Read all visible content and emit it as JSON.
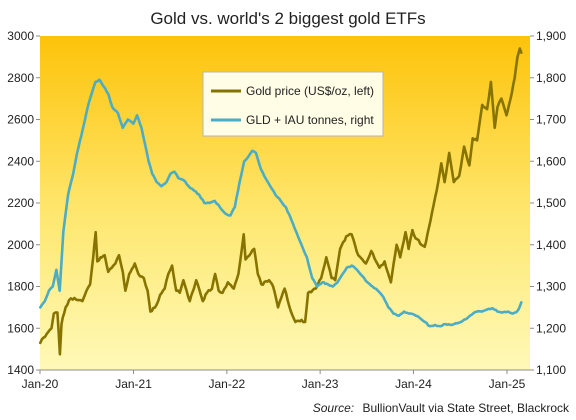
{
  "chart_data": {
    "type": "line",
    "title": "Gold vs. world's 2 biggest gold ETFs",
    "source_label": "Source:",
    "source_text": "BullionVault via  State Street, Blackrock",
    "x_axis": {
      "range": [
        "2020-01",
        "2025-04"
      ],
      "ticks": [
        {
          "value": "2020-01",
          "label": "Jan-20"
        },
        {
          "value": "2021-01",
          "label": "Jan-21"
        },
        {
          "value": "2022-01",
          "label": "Jan-22"
        },
        {
          "value": "2023-01",
          "label": "Jan-23"
        },
        {
          "value": "2024-01",
          "label": "Jan-24"
        },
        {
          "value": "2025-01",
          "label": "Jan-25"
        }
      ]
    },
    "y_left": {
      "range": [
        1400,
        3000
      ],
      "ticks": [
        {
          "value": 1400,
          "label": "1400"
        },
        {
          "value": 1600,
          "label": "1600"
        },
        {
          "value": 1800,
          "label": "1800"
        },
        {
          "value": 2000,
          "label": "2000"
        },
        {
          "value": 2200,
          "label": "2200"
        },
        {
          "value": 2400,
          "label": "2400"
        },
        {
          "value": 2600,
          "label": "2600"
        },
        {
          "value": 2800,
          "label": "2800"
        },
        {
          "value": 3000,
          "label": "3000"
        }
      ]
    },
    "y_right": {
      "range": [
        1100,
        1900
      ],
      "ticks": [
        {
          "value": 1100,
          "label": "1,100"
        },
        {
          "value": 1200,
          "label": "1,200"
        },
        {
          "value": 1300,
          "label": "1,300"
        },
        {
          "value": 1400,
          "label": "1,400"
        },
        {
          "value": 1500,
          "label": "1,500"
        },
        {
          "value": 1600,
          "label": "1,600"
        },
        {
          "value": 1700,
          "label": "1,700"
        },
        {
          "value": 1800,
          "label": "1,800"
        },
        {
          "value": 1900,
          "label": "1,900"
        }
      ]
    },
    "grid": false,
    "legend_position": "top-center",
    "colors": {
      "gold_price": "#877400",
      "etf_holdings": "#4bacc6",
      "background_top": "#fdc30a",
      "background_bottom": "#fff9b8"
    },
    "series": [
      {
        "id": "gold_price",
        "name": "Gold price (US$/oz, left)",
        "axis": "left",
        "points": [
          [
            "2020-01-02",
            1530
          ],
          [
            "2020-01-15",
            1555
          ],
          [
            "2020-02-01",
            1580
          ],
          [
            "2020-02-15",
            1600
          ],
          [
            "2020-02-24",
            1670
          ],
          [
            "2020-03-09",
            1675
          ],
          [
            "2020-03-19",
            1475
          ],
          [
            "2020-03-25",
            1620
          ],
          [
            "2020-04-10",
            1700
          ],
          [
            "2020-04-24",
            1735
          ],
          [
            "2020-05-15",
            1745
          ],
          [
            "2020-06-01",
            1735
          ],
          [
            "2020-06-15",
            1730
          ],
          [
            "2020-07-01",
            1780
          ],
          [
            "2020-07-15",
            1810
          ],
          [
            "2020-07-27",
            1940
          ],
          [
            "2020-08-06",
            2060
          ],
          [
            "2020-08-12",
            1920
          ],
          [
            "2020-08-25",
            1940
          ],
          [
            "2020-09-10",
            1950
          ],
          [
            "2020-09-24",
            1870
          ],
          [
            "2020-10-08",
            1890
          ],
          [
            "2020-10-22",
            1910
          ],
          [
            "2020-11-05",
            1950
          ],
          [
            "2020-11-20",
            1870
          ],
          [
            "2020-11-30",
            1780
          ],
          [
            "2020-12-15",
            1860
          ],
          [
            "2021-01-06",
            1910
          ],
          [
            "2021-01-20",
            1860
          ],
          [
            "2021-02-10",
            1840
          ],
          [
            "2021-02-25",
            1780
          ],
          [
            "2021-03-08",
            1680
          ],
          [
            "2021-03-31",
            1710
          ],
          [
            "2021-04-15",
            1760
          ],
          [
            "2021-05-03",
            1790
          ],
          [
            "2021-05-17",
            1860
          ],
          [
            "2021-06-01",
            1900
          ],
          [
            "2021-06-17",
            1780
          ],
          [
            "2021-07-01",
            1770
          ],
          [
            "2021-07-15",
            1830
          ],
          [
            "2021-08-09",
            1730
          ],
          [
            "2021-08-25",
            1790
          ],
          [
            "2021-09-03",
            1830
          ],
          [
            "2021-09-29",
            1730
          ],
          [
            "2021-10-15",
            1770
          ],
          [
            "2021-11-04",
            1790
          ],
          [
            "2021-11-16",
            1860
          ],
          [
            "2021-11-30",
            1780
          ],
          [
            "2021-12-15",
            1770
          ],
          [
            "2022-01-05",
            1820
          ],
          [
            "2022-01-28",
            1790
          ],
          [
            "2022-02-15",
            1860
          ],
          [
            "2022-03-08",
            2050
          ],
          [
            "2022-03-15",
            1930
          ],
          [
            "2022-04-18",
            1980
          ],
          [
            "2022-05-02",
            1860
          ],
          [
            "2022-05-16",
            1810
          ],
          [
            "2022-06-15",
            1830
          ],
          [
            "2022-07-01",
            1800
          ],
          [
            "2022-07-20",
            1700
          ],
          [
            "2022-08-15",
            1790
          ],
          [
            "2022-09-01",
            1710
          ],
          [
            "2022-09-26",
            1630
          ],
          [
            "2022-10-20",
            1640
          ],
          [
            "2022-11-03",
            1630
          ],
          [
            "2022-11-15",
            1770
          ],
          [
            "2022-12-15",
            1790
          ],
          [
            "2023-01-05",
            1840
          ],
          [
            "2023-01-25",
            1940
          ],
          [
            "2023-02-15",
            1840
          ],
          [
            "2023-03-01",
            1830
          ],
          [
            "2023-03-20",
            1980
          ],
          [
            "2023-04-13",
            2040
          ],
          [
            "2023-05-04",
            2050
          ],
          [
            "2023-05-30",
            1950
          ],
          [
            "2023-06-15",
            1930
          ],
          [
            "2023-06-29",
            1910
          ],
          [
            "2023-07-20",
            1970
          ],
          [
            "2023-08-21",
            1890
          ],
          [
            "2023-09-10",
            1920
          ],
          [
            "2023-10-05",
            1820
          ],
          [
            "2023-10-27",
            2000
          ],
          [
            "2023-11-10",
            1940
          ],
          [
            "2023-12-01",
            2060
          ],
          [
            "2023-12-13",
            1980
          ],
          [
            "2023-12-28",
            2070
          ],
          [
            "2024-01-10",
            2030
          ],
          [
            "2024-02-14",
            1990
          ],
          [
            "2024-03-01",
            2080
          ],
          [
            "2024-03-20",
            2190
          ],
          [
            "2024-04-01",
            2260
          ],
          [
            "2024-04-19",
            2390
          ],
          [
            "2024-05-02",
            2300
          ],
          [
            "2024-05-20",
            2440
          ],
          [
            "2024-06-07",
            2300
          ],
          [
            "2024-06-28",
            2330
          ],
          [
            "2024-07-17",
            2470
          ],
          [
            "2024-08-07",
            2380
          ],
          [
            "2024-08-20",
            2510
          ],
          [
            "2024-09-06",
            2500
          ],
          [
            "2024-09-26",
            2670
          ],
          [
            "2024-10-15",
            2650
          ],
          [
            "2024-10-30",
            2780
          ],
          [
            "2024-11-14",
            2560
          ],
          [
            "2024-11-25",
            2660
          ],
          [
            "2024-12-10",
            2700
          ],
          [
            "2024-12-30",
            2620
          ],
          [
            "2025-01-15",
            2700
          ],
          [
            "2025-01-31",
            2800
          ],
          [
            "2025-02-11",
            2900
          ],
          [
            "2025-02-20",
            2940
          ],
          [
            "2025-02-26",
            2920
          ]
        ]
      },
      {
        "id": "etf_holdings",
        "name": "GLD + IAU tonnes, right",
        "axis": "right",
        "points": [
          [
            "2020-01-02",
            1250
          ],
          [
            "2020-01-20",
            1265
          ],
          [
            "2020-02-05",
            1290
          ],
          [
            "2020-02-20",
            1300
          ],
          [
            "2020-03-05",
            1340
          ],
          [
            "2020-03-18",
            1290
          ],
          [
            "2020-04-01",
            1430
          ],
          [
            "2020-04-20",
            1520
          ],
          [
            "2020-05-10",
            1570
          ],
          [
            "2020-05-25",
            1620
          ],
          [
            "2020-06-10",
            1660
          ],
          [
            "2020-06-25",
            1700
          ],
          [
            "2020-07-10",
            1740
          ],
          [
            "2020-07-25",
            1770
          ],
          [
            "2020-08-05",
            1790
          ],
          [
            "2020-08-20",
            1795
          ],
          [
            "2020-09-05",
            1780
          ],
          [
            "2020-09-25",
            1760
          ],
          [
            "2020-10-10",
            1730
          ],
          [
            "2020-11-01",
            1715
          ],
          [
            "2020-11-20",
            1680
          ],
          [
            "2020-12-10",
            1700
          ],
          [
            "2020-12-31",
            1690
          ],
          [
            "2021-01-15",
            1710
          ],
          [
            "2021-02-01",
            1680
          ],
          [
            "2021-02-15",
            1640
          ],
          [
            "2021-03-01",
            1600
          ],
          [
            "2021-03-15",
            1570
          ],
          [
            "2021-04-01",
            1550
          ],
          [
            "2021-04-20",
            1540
          ],
          [
            "2021-05-10",
            1550
          ],
          [
            "2021-05-25",
            1570
          ],
          [
            "2021-06-10",
            1575
          ],
          [
            "2021-06-25",
            1560
          ],
          [
            "2021-07-15",
            1555
          ],
          [
            "2021-08-05",
            1540
          ],
          [
            "2021-08-25",
            1530
          ],
          [
            "2021-09-15",
            1520
          ],
          [
            "2021-10-05",
            1500
          ],
          [
            "2021-10-25",
            1500
          ],
          [
            "2021-11-15",
            1505
          ],
          [
            "2021-12-05",
            1490
          ],
          [
            "2021-12-25",
            1475
          ],
          [
            "2022-01-15",
            1470
          ],
          [
            "2022-02-01",
            1490
          ],
          [
            "2022-02-20",
            1550
          ],
          [
            "2022-03-10",
            1600
          ],
          [
            "2022-03-25",
            1610
          ],
          [
            "2022-04-10",
            1625
          ],
          [
            "2022-04-25",
            1620
          ],
          [
            "2022-05-15",
            1580
          ],
          [
            "2022-06-01",
            1560
          ],
          [
            "2022-06-20",
            1540
          ],
          [
            "2022-07-10",
            1520
          ],
          [
            "2022-07-31",
            1505
          ],
          [
            "2022-08-20",
            1490
          ],
          [
            "2022-09-10",
            1460
          ],
          [
            "2022-09-30",
            1430
          ],
          [
            "2022-10-20",
            1400
          ],
          [
            "2022-11-10",
            1370
          ],
          [
            "2022-12-01",
            1320
          ],
          [
            "2022-12-20",
            1300
          ],
          [
            "2023-01-10",
            1310
          ],
          [
            "2023-02-01",
            1305
          ],
          [
            "2023-02-20",
            1300
          ],
          [
            "2023-03-10",
            1310
          ],
          [
            "2023-03-30",
            1330
          ],
          [
            "2023-04-15",
            1345
          ],
          [
            "2023-05-05",
            1350
          ],
          [
            "2023-05-25",
            1340
          ],
          [
            "2023-06-15",
            1325
          ],
          [
            "2023-07-05",
            1310
          ],
          [
            "2023-07-25",
            1300
          ],
          [
            "2023-08-15",
            1290
          ],
          [
            "2023-09-05",
            1275
          ],
          [
            "2023-09-25",
            1250
          ],
          [
            "2023-10-15",
            1235
          ],
          [
            "2023-11-05",
            1230
          ],
          [
            "2023-11-25",
            1240
          ],
          [
            "2023-12-15",
            1235
          ],
          [
            "2024-01-05",
            1232
          ],
          [
            "2024-01-25",
            1225
          ],
          [
            "2024-02-15",
            1215
          ],
          [
            "2024-03-05",
            1205
          ],
          [
            "2024-03-25",
            1208
          ],
          [
            "2024-04-15",
            1205
          ],
          [
            "2024-05-05",
            1210
          ],
          [
            "2024-05-25",
            1208
          ],
          [
            "2024-06-15",
            1212
          ],
          [
            "2024-07-05",
            1215
          ],
          [
            "2024-07-25",
            1222
          ],
          [
            "2024-08-15",
            1232
          ],
          [
            "2024-09-05",
            1240
          ],
          [
            "2024-09-25",
            1240
          ],
          [
            "2024-10-15",
            1245
          ],
          [
            "2024-11-05",
            1248
          ],
          [
            "2024-11-25",
            1240
          ],
          [
            "2024-12-15",
            1238
          ],
          [
            "2025-01-05",
            1240
          ],
          [
            "2025-01-25",
            1235
          ],
          [
            "2025-02-05",
            1238
          ],
          [
            "2025-02-15",
            1245
          ],
          [
            "2025-02-26",
            1262
          ]
        ]
      }
    ]
  }
}
